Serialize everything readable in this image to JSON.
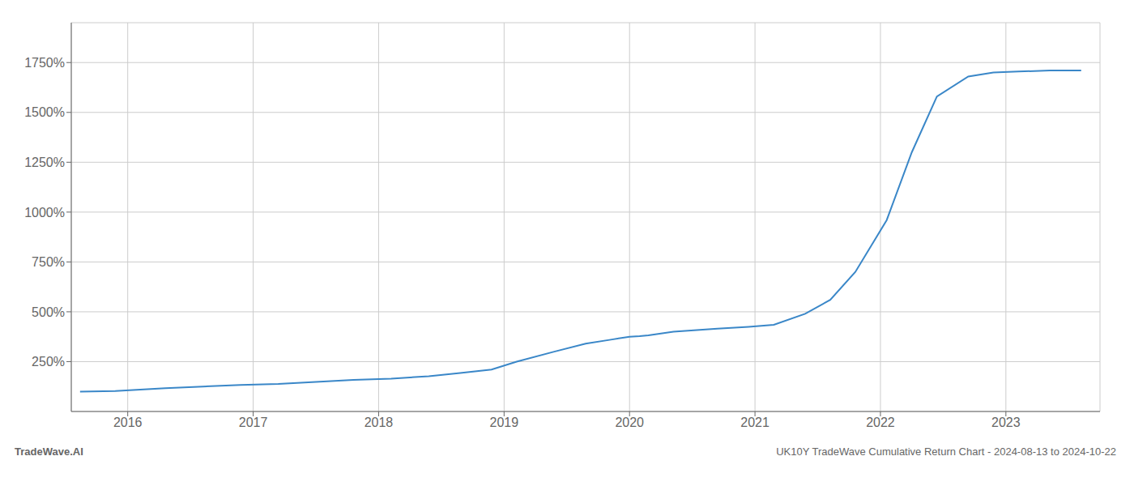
{
  "chart_data": {
    "type": "line",
    "title": "UK10Y TradeWave Cumulative Return Chart - 2024-08-13 to 2024-10-22",
    "annotations": [
      "TradeWave.AI"
    ],
    "x": [
      2015.62,
      2015.9,
      2016.1,
      2016.3,
      2016.6,
      2016.9,
      2017.2,
      2017.5,
      2017.8,
      2018.1,
      2018.4,
      2018.65,
      2018.9,
      2019.1,
      2019.4,
      2019.65,
      2019.85,
      2020.0,
      2020.08,
      2020.15,
      2020.35,
      2020.7,
      2020.95,
      2021.15,
      2021.4,
      2021.6,
      2021.8,
      2022.05,
      2022.25,
      2022.45,
      2022.7,
      2022.9,
      2023.1,
      2023.35,
      2023.6
    ],
    "values": [
      100,
      103,
      110,
      117,
      125,
      133,
      138,
      148,
      158,
      165,
      177,
      193,
      210,
      250,
      300,
      340,
      360,
      375,
      378,
      382,
      400,
      415,
      425,
      435,
      490,
      560,
      700,
      960,
      1300,
      1580,
      1680,
      1700,
      1705,
      1710,
      1710
    ],
    "color": "#3a87c8",
    "xlim": [
      2015.55,
      2023.75
    ],
    "xticks": [
      2016,
      2017,
      2018,
      2019,
      2020,
      2021,
      2022,
      2023
    ],
    "ylim": [
      0,
      1950
    ],
    "yticks": [
      {
        "value": 250,
        "label": "250%"
      },
      {
        "value": 500,
        "label": "500%"
      },
      {
        "value": 750,
        "label": "750%"
      },
      {
        "value": 1000,
        "label": "1000%"
      },
      {
        "value": 1250,
        "label": "1250%"
      },
      {
        "value": 1500,
        "label": "1500%"
      },
      {
        "value": 1750,
        "label": "1750%"
      }
    ],
    "grid": true
  }
}
